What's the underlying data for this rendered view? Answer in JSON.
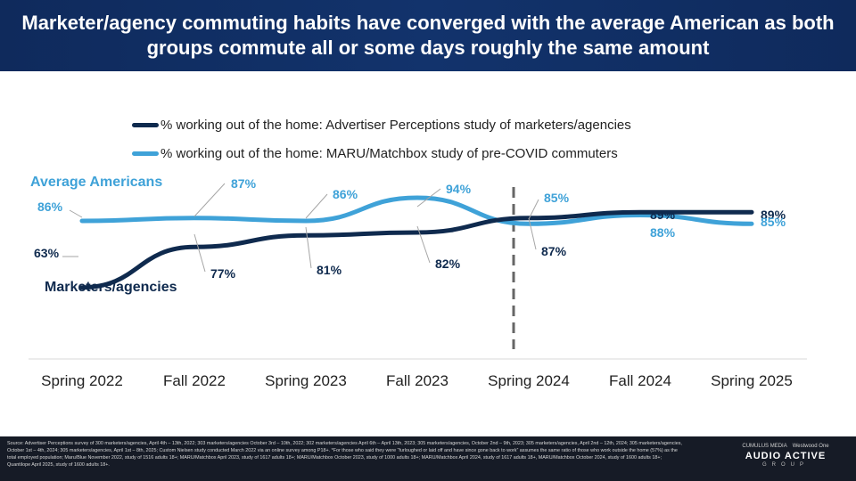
{
  "header": {
    "title": "Marketer/agency commuting habits have converged with the average American as both groups commute all or some days roughly the same amount"
  },
  "chart_data": {
    "type": "line",
    "categories": [
      "Spring 2022",
      "Fall 2022",
      "Spring 2023",
      "Fall 2023",
      "Spring 2024",
      "Fall 2024",
      "Spring 2025"
    ],
    "series": [
      {
        "name": "% working out of the home: Advertiser Perceptions study of marketers/agencies",
        "color": "#0f2a4e",
        "values": [
          63,
          77,
          81,
          82,
          87,
          89,
          89
        ],
        "labels": [
          "63%",
          "77%",
          "81%",
          "82%",
          "87%",
          "89%",
          "89%"
        ],
        "group_label": "Marketers/agencies"
      },
      {
        "name": "% working out of the home: MARU/Matchbox study of pre-COVID commuters",
        "color": "#3fa2d8",
        "values": [
          86,
          87,
          86,
          94,
          85,
          88,
          85
        ],
        "labels": [
          "86%",
          "87%",
          "86%",
          "94%",
          "85%",
          "88%",
          "85%"
        ],
        "group_label": "Average Americans"
      }
    ],
    "annotations": [
      "divider between Fall 2023 and Spring 2024"
    ],
    "xlabel": "",
    "ylabel": ""
  },
  "footer": {
    "source": "Source: Advertiser Perceptions survey of 300 marketers/agencies, April 4th – 13th, 2022; 303 marketers/agencies October 3rd – 10th, 2022; 302 marketers/agencies April 6th – April 13th, 2023; 305 marketers/agencies, October 2nd – 9th, 2023; 305 marketers/agencies, April 2nd – 12th, 2024; 305 marketers/agencies, October 1st – 4th, 2024; 305 marketers/agencies, April 1st – 8th, 2025; Custom Nielsen study conducted March 2022 via an online survey among P18+. *For those who said they were “furloughed or laid off and have since gone back to work” assumes the same ratio of those who work outside the home (57%) as the total employed population; Maru/Blue November 2022, study of 1516 adults 18+; MARU/Matchbox April 2023, study of 1617 adults 18+; MARU/Matchbox October 2023, study of 1000 adults 18+; MARU/Matchbox April 2024, study of 1617 adults 18+, MARU/Matchbox October 2024, study of 1600 adults 18+; Quantilope April 2025, study of 1600 adults 18+.",
    "logo": {
      "partner_left": "CUMULUS MEDIA",
      "partner_right": "Westwood One",
      "name": "AUDIO ACTIVE",
      "sub": "GROUP"
    }
  }
}
